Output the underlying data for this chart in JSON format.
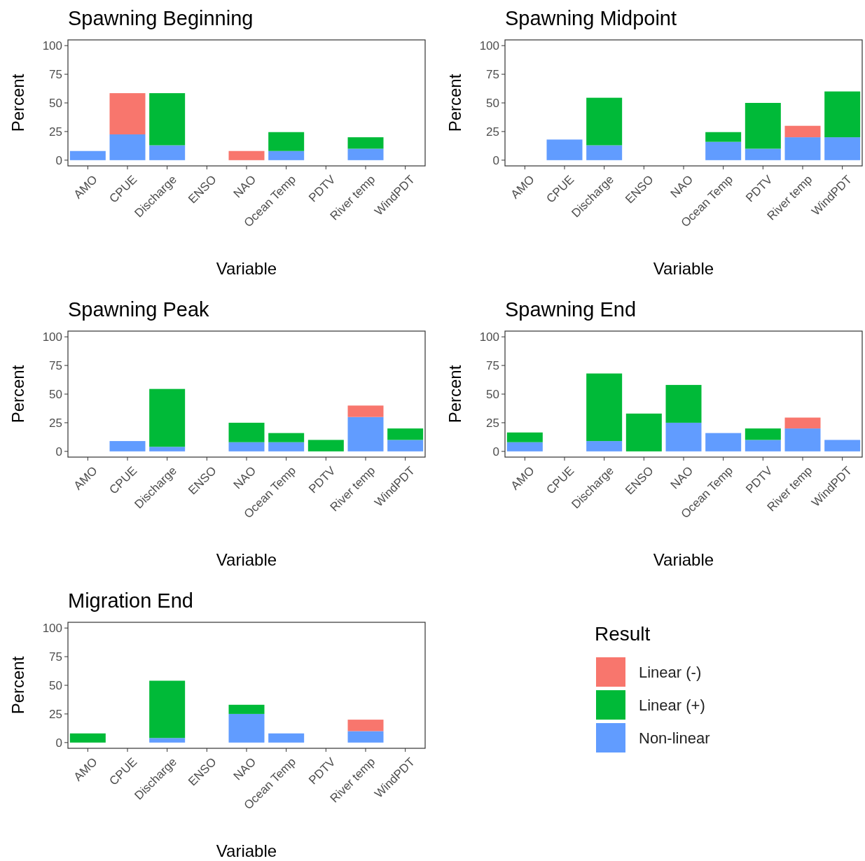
{
  "chart_data": [
    {
      "type": "bar",
      "title": "Spawning Beginning",
      "xlabel": "Variable",
      "ylabel": "Percent",
      "stacked": true,
      "categories": [
        "AMO",
        "CPUE",
        "Discharge",
        "ENSO",
        "NAO",
        "Ocean Temp",
        "PDTV",
        "River temp",
        "WindPDT"
      ],
      "ylim": [
        -5,
        105
      ],
      "yticks": [
        0,
        25,
        50,
        75,
        100
      ],
      "grid": false,
      "series": [
        {
          "color": "#619cff",
          "values": [
            8,
            22.5,
            13,
            null,
            null,
            8,
            null,
            10,
            null
          ]
        },
        {
          "color": "#00ba38",
          "values": [
            null,
            null,
            45.5,
            null,
            null,
            16.5,
            null,
            10,
            null
          ]
        },
        {
          "color": "#f8766d",
          "values": [
            null,
            36,
            null,
            null,
            8,
            null,
            null,
            null,
            null
          ]
        }
      ]
    },
    {
      "type": "bar",
      "title": "Spawning Midpoint",
      "xlabel": "Variable",
      "ylabel": "Percent",
      "stacked": true,
      "categories": [
        "AMO",
        "CPUE",
        "Discharge",
        "ENSO",
        "NAO",
        "Ocean Temp",
        "PDTV",
        "River temp",
        "WindPDT"
      ],
      "ylim": [
        -5,
        105
      ],
      "yticks": [
        0,
        25,
        50,
        75,
        100
      ],
      "grid": false,
      "series": [
        {
          "color": "#619cff",
          "values": [
            null,
            18,
            13,
            null,
            null,
            16,
            10,
            20,
            20
          ]
        },
        {
          "color": "#00ba38",
          "values": [
            null,
            null,
            41.5,
            null,
            null,
            8.5,
            40,
            null,
            40
          ]
        },
        {
          "color": "#f8766d",
          "values": [
            null,
            null,
            null,
            null,
            null,
            null,
            null,
            10,
            null
          ]
        }
      ]
    },
    {
      "type": "bar",
      "title": "Spawning Peak",
      "xlabel": "Variable",
      "ylabel": "Percent",
      "stacked": true,
      "categories": [
        "AMO",
        "CPUE",
        "Discharge",
        "ENSO",
        "NAO",
        "Ocean Temp",
        "PDTV",
        "River temp",
        "WindPDT"
      ],
      "ylim": [
        -5,
        105
      ],
      "yticks": [
        0,
        25,
        50,
        75,
        100
      ],
      "grid": false,
      "series": [
        {
          "color": "#619cff",
          "values": [
            null,
            9,
            4,
            null,
            8,
            8,
            null,
            30,
            10
          ]
        },
        {
          "color": "#00ba38",
          "values": [
            null,
            null,
            50.5,
            null,
            17,
            8,
            10,
            null,
            10
          ]
        },
        {
          "color": "#f8766d",
          "values": [
            null,
            null,
            null,
            null,
            null,
            null,
            null,
            10,
            null
          ]
        }
      ]
    },
    {
      "type": "bar",
      "title": "Spawning End",
      "xlabel": "Variable",
      "ylabel": "Percent",
      "stacked": true,
      "categories": [
        "AMO",
        "CPUE",
        "Discharge",
        "ENSO",
        "NAO",
        "Ocean Temp",
        "PDTV",
        "River temp",
        "WindPDT"
      ],
      "ylim": [
        -5,
        105
      ],
      "yticks": [
        0,
        25,
        50,
        75,
        100
      ],
      "grid": false,
      "series": [
        {
          "color": "#619cff",
          "values": [
            8,
            null,
            9,
            null,
            25,
            16,
            10,
            20,
            10
          ]
        },
        {
          "color": "#00ba38",
          "values": [
            8.5,
            null,
            59,
            33,
            33,
            null,
            10,
            null,
            null
          ]
        },
        {
          "color": "#f8766d",
          "values": [
            null,
            null,
            null,
            null,
            null,
            null,
            null,
            9.5,
            null
          ]
        }
      ]
    },
    {
      "type": "bar",
      "title": "Migration End",
      "xlabel": "Variable",
      "ylabel": "Percent",
      "stacked": true,
      "categories": [
        "AMO",
        "CPUE",
        "Discharge",
        "ENSO",
        "NAO",
        "Ocean Temp",
        "PDTV",
        "River temp",
        "WindPDT"
      ],
      "ylim": [
        -5,
        105
      ],
      "yticks": [
        0,
        25,
        50,
        75,
        100
      ],
      "grid": false,
      "legend": "right",
      "legend_title": "Result",
      "series": [
        {
          "name": "Non-linear",
          "color": "#619cff",
          "values": [
            null,
            null,
            4,
            null,
            25,
            8,
            null,
            10,
            null
          ]
        },
        {
          "name": "Linear (+)",
          "color": "#00ba38",
          "values": [
            8,
            null,
            50,
            null,
            8,
            null,
            null,
            null,
            null
          ]
        },
        {
          "name": "Linear (-)",
          "color": "#f8766d",
          "values": [
            null,
            null,
            null,
            null,
            null,
            null,
            null,
            10,
            null
          ]
        }
      ]
    }
  ]
}
